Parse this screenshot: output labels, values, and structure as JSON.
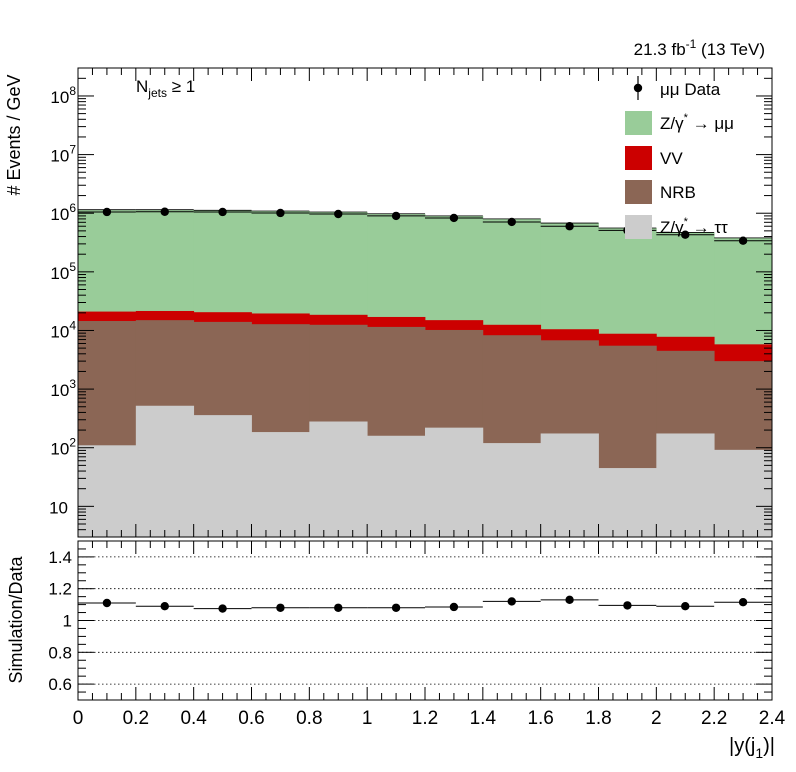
{
  "lumi_label": "21.3 fb",
  "lumi_sup": "-1",
  "energy_label": " (13 TeV)",
  "annotation": {
    "main": "N",
    "sub": "jets",
    "rest": " ≥ 1"
  },
  "colors": {
    "dy_mumu": "#99cc99",
    "vv": "#cc0000",
    "nrb": "#8b6655",
    "dy_tautau": "#cccccc",
    "data": "#000000"
  },
  "chart_data": [
    {
      "type": "bar",
      "stacked": true,
      "log_y": true,
      "ylabel": "# Events / GeV",
      "ylim": [
        3,
        300000000.0
      ],
      "xlim": [
        0,
        2.4
      ],
      "bin_edges": [
        0,
        0.2,
        0.4,
        0.6,
        0.8,
        1.0,
        1.2,
        1.4,
        1.6,
        1.8,
        2.0,
        2.2,
        2.4
      ],
      "y_tick_labels": [
        {
          "v": 10,
          "base": "10",
          "exp": ""
        },
        {
          "v": 100,
          "base": "10",
          "exp": "2"
        },
        {
          "v": 1000,
          "base": "10",
          "exp": "3"
        },
        {
          "v": 10000,
          "base": "10",
          "exp": "4"
        },
        {
          "v": 100000,
          "base": "10",
          "exp": "5"
        },
        {
          "v": 1000000,
          "base": "10",
          "exp": "6"
        },
        {
          "v": 10000000,
          "base": "10",
          "exp": "7"
        },
        {
          "v": 100000000,
          "base": "10",
          "exp": "8"
        }
      ],
      "stack_totals": {
        "dy_tautau": [
          110,
          520,
          360,
          185,
          280,
          160,
          220,
          120,
          175,
          45,
          175,
          92
        ],
        "nrb": [
          14500,
          15000,
          14000,
          12800,
          12500,
          11500,
          10200,
          8300,
          6800,
          5500,
          4500,
          3000
        ],
        "vv": [
          21000,
          21500,
          20500,
          19500,
          18500,
          17000,
          15000,
          12500,
          10500,
          8800,
          7800,
          5800
        ],
        "dy_mumu": [
          1150000,
          1150000,
          1120000,
          1090000,
          1050000,
          980000,
          900000,
          800000,
          680000,
          560000,
          470000,
          380000
        ]
      },
      "data_values": [
        1050000,
        1060000,
        1050000,
        1010000,
        970000,
        900000,
        830000,
        710000,
        600000,
        510000,
        430000,
        340000
      ],
      "legend": {
        "placement": "top-right",
        "entries": [
          {
            "key": "data",
            "label": "μμ Data",
            "style": "marker"
          },
          {
            "key": "dy_mumu",
            "label": "Z/γ",
            "sup": "*",
            "tail": " → μμ",
            "style": "box"
          },
          {
            "key": "vv",
            "label": "VV",
            "sup": "",
            "tail": "",
            "style": "box"
          },
          {
            "key": "nrb",
            "label": "NRB",
            "sup": "",
            "tail": "",
            "style": "box"
          },
          {
            "key": "dy_tautau",
            "label": "Z/γ",
            "sup": "*",
            "tail": " → ττ",
            "style": "box"
          }
        ]
      }
    },
    {
      "type": "scatter",
      "ylabel": "Simulation/Data",
      "xlabel": "|y(j",
      "xlabel_sub": "1",
      "xlabel_tail": ")|",
      "ylim": [
        0.5,
        1.5
      ],
      "xlim": [
        0,
        2.4
      ],
      "x": [
        0.1,
        0.3,
        0.5,
        0.7,
        0.9,
        1.1,
        1.3,
        1.5,
        1.7,
        1.9,
        2.1,
        2.3
      ],
      "y": [
        1.11,
        1.09,
        1.075,
        1.08,
        1.08,
        1.08,
        1.085,
        1.12,
        1.13,
        1.095,
        1.09,
        1.115
      ],
      "y_ticks": [
        0.6,
        0.8,
        1,
        1.2,
        1.4
      ],
      "y_tick_labels": [
        "0.6",
        "0.8",
        "1",
        "1.2",
        "1.4"
      ],
      "x_ticks": [
        0,
        0.2,
        0.4,
        0.6,
        0.8,
        1,
        1.2,
        1.4,
        1.6,
        1.8,
        2,
        2.2,
        2.4
      ],
      "x_tick_labels": [
        "0",
        "0.2",
        "0.4",
        "0.6",
        "0.8",
        "1",
        "1.2",
        "1.4",
        "1.6",
        "1.8",
        "2",
        "2.2",
        "2.4"
      ],
      "grid_y": [
        0.6,
        0.8,
        1,
        1.2,
        1.4
      ]
    }
  ]
}
